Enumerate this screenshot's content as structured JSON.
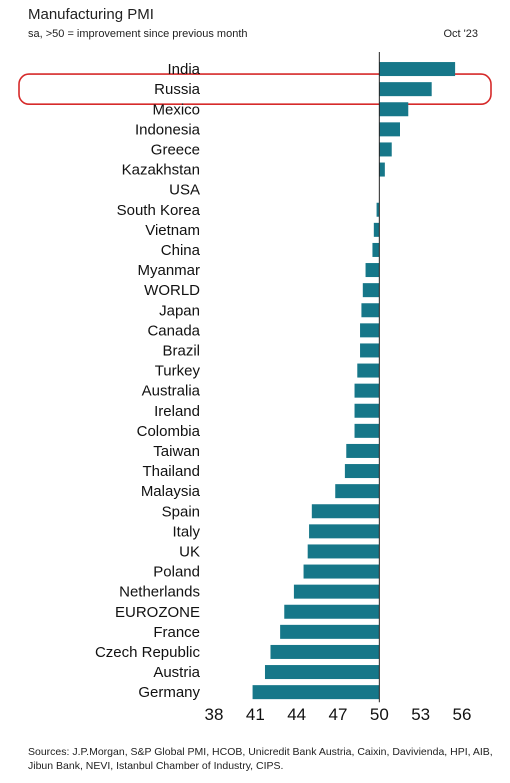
{
  "header": {
    "title": "Manufacturing PMI",
    "subtitle": "sa, >50 = improvement since previous month",
    "date": "Oct '23"
  },
  "footer": {
    "source": "Sources: J.P.Morgan, S&P Global PMI, HCOB, Unicredit Bank Austria, Caixin, Davivienda, HPI, AIB, Jibun Bank, NEVI, Istanbul Chamber of Industry, CIPS."
  },
  "chart_data": {
    "type": "bar",
    "orientation": "horizontal",
    "baseline": 50,
    "categories": [
      "India",
      "Russia",
      "Mexico",
      "Indonesia",
      "Greece",
      "Kazakhstan",
      "USA",
      "South Korea",
      "Vietnam",
      "China",
      "Myanmar",
      "WORLD",
      "Japan",
      "Canada",
      "Brazil",
      "Turkey",
      "Australia",
      "Ireland",
      "Colombia",
      "Taiwan",
      "Thailand",
      "Malaysia",
      "Spain",
      "Italy",
      "UK",
      "Poland",
      "Netherlands",
      "EUROZONE",
      "France",
      "Czech Republic",
      "Austria",
      "Germany"
    ],
    "values": [
      55.5,
      53.8,
      52.1,
      51.5,
      50.9,
      50.4,
      50.0,
      49.8,
      49.6,
      49.5,
      49.0,
      48.8,
      48.7,
      48.6,
      48.6,
      48.4,
      48.2,
      48.2,
      48.2,
      47.6,
      47.5,
      46.8,
      45.1,
      44.9,
      44.8,
      44.5,
      43.8,
      43.1,
      42.8,
      42.1,
      41.7,
      40.8
    ],
    "xlim": [
      38,
      56
    ],
    "xticks": [
      38,
      41,
      44,
      47,
      50,
      53,
      56
    ],
    "bar_color": "#167789",
    "highlight": {
      "category": "Russia",
      "outline_color": "#d62a2a"
    }
  }
}
